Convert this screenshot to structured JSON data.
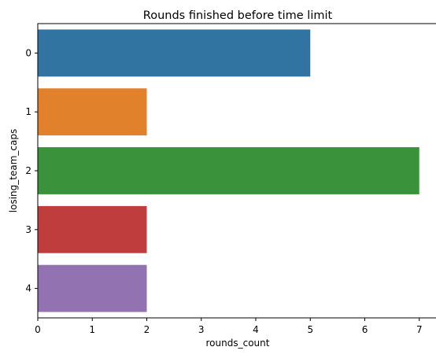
{
  "chart_data": {
    "type": "bar",
    "orientation": "horizontal",
    "title": "Rounds finished before time limit",
    "xlabel": "rounds_count",
    "ylabel": "losing_team_caps",
    "categories": [
      "0",
      "1",
      "2",
      "3",
      "4"
    ],
    "values": [
      5,
      2,
      7,
      2,
      2
    ],
    "colors": [
      "#3274a1",
      "#e1812c",
      "#3a923a",
      "#c03d3e",
      "#9372b2"
    ],
    "xlim": [
      0,
      7.35
    ],
    "xticks": [
      "0",
      "1",
      "2",
      "3",
      "4",
      "5",
      "6",
      "7"
    ],
    "grid": false,
    "legend": "none"
  }
}
